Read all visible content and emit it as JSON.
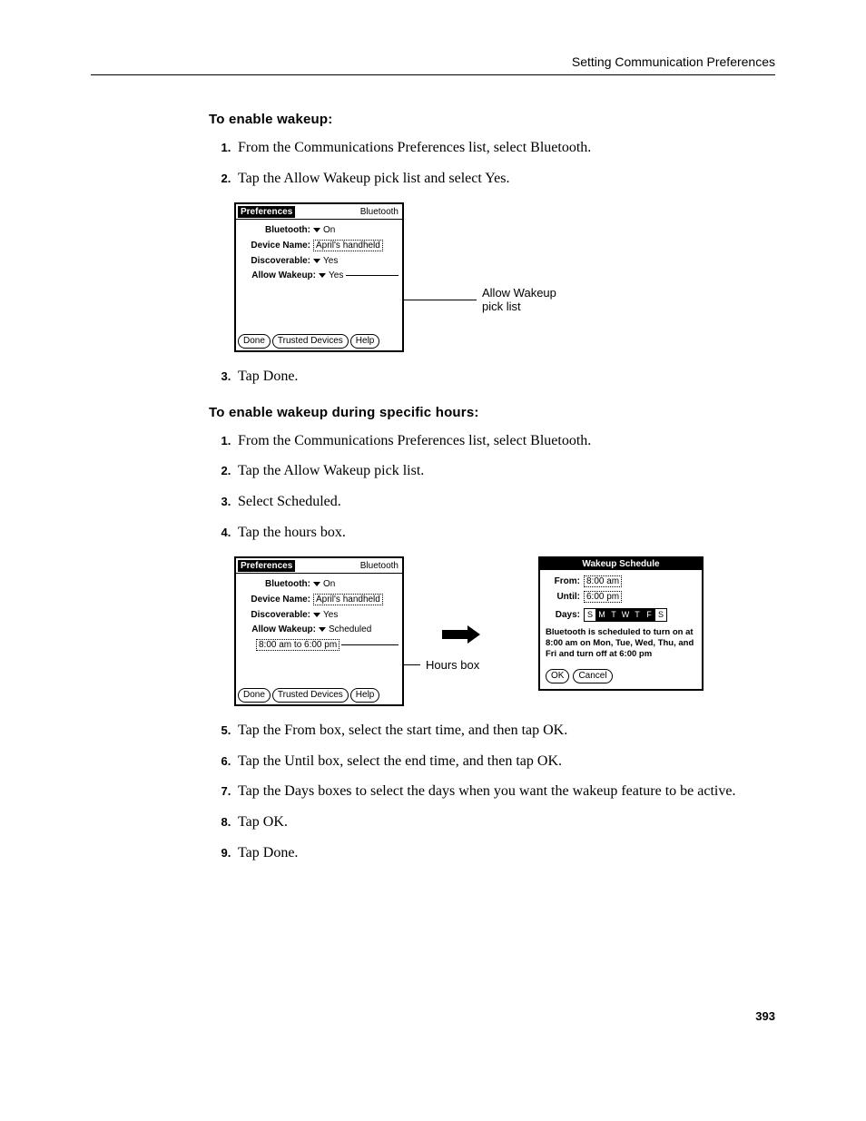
{
  "header": {
    "title": "Setting Communication Preferences"
  },
  "section1": {
    "title": "To enable wakeup:",
    "steps": [
      "From the Communications Preferences list, select Bluetooth.",
      "Tap the Allow Wakeup pick list and select Yes."
    ],
    "step3": "Tap Done."
  },
  "fig1": {
    "palm": {
      "titleLeft": "Preferences",
      "titleRight": "Bluetooth",
      "bluetoothLabel": "Bluetooth:",
      "bluetoothValue": "On",
      "deviceNameLabel": "Device Name:",
      "deviceNameValue": "April's handheld",
      "discoverableLabel": "Discoverable:",
      "discoverableValue": "Yes",
      "allowWakeupLabel": "Allow Wakeup:",
      "allowWakeupValue": "Yes",
      "doneBtn": "Done",
      "trustedBtn": "Trusted Devices",
      "helpBtn": "Help"
    },
    "calloutLine1": "Allow Wakeup",
    "calloutLine2": "pick list"
  },
  "section2": {
    "title": "To enable wakeup during specific hours:",
    "steps": [
      "From the Communications Preferences list, select Bluetooth.",
      "Tap the Allow Wakeup pick list.",
      "Select Scheduled.",
      "Tap the hours box."
    ],
    "steps2": [
      "Tap the From box, select the start time, and then tap OK.",
      "Tap the Until box, select the end time, and then tap OK.",
      "Tap the Days boxes to select the days when you want the wakeup feature to be active.",
      "Tap OK.",
      "Tap Done."
    ]
  },
  "fig2": {
    "palm": {
      "titleLeft": "Preferences",
      "titleRight": "Bluetooth",
      "bluetoothLabel": "Bluetooth:",
      "bluetoothValue": "On",
      "deviceNameLabel": "Device Name:",
      "deviceNameValue": "April's handheld",
      "discoverableLabel": "Discoverable:",
      "discoverableValue": "Yes",
      "allowWakeupLabel": "Allow Wakeup:",
      "allowWakeupValue": "Scheduled",
      "hoursValue": "8:00 am to 6:00 pm",
      "doneBtn": "Done",
      "trustedBtn": "Trusted Devices",
      "helpBtn": "Help"
    },
    "callout": "Hours box",
    "wakeup": {
      "title": "Wakeup Schedule",
      "fromLabel": "From:",
      "fromValue": "8:00 am",
      "untilLabel": "Until:",
      "untilValue": "6:00 pm",
      "daysLabel": "Days:",
      "days": [
        {
          "l": "S",
          "on": false
        },
        {
          "l": "M",
          "on": true
        },
        {
          "l": "T",
          "on": true
        },
        {
          "l": "W",
          "on": true
        },
        {
          "l": "T",
          "on": true
        },
        {
          "l": "F",
          "on": true
        },
        {
          "l": "S",
          "on": false
        }
      ],
      "scheduleText": "Bluetooth is scheduled to turn on at 8:00 am on Mon, Tue, Wed, Thu, and Fri and turn off at 6:00 pm",
      "okBtn": "OK",
      "cancelBtn": "Cancel"
    }
  },
  "pageNumber": "393"
}
